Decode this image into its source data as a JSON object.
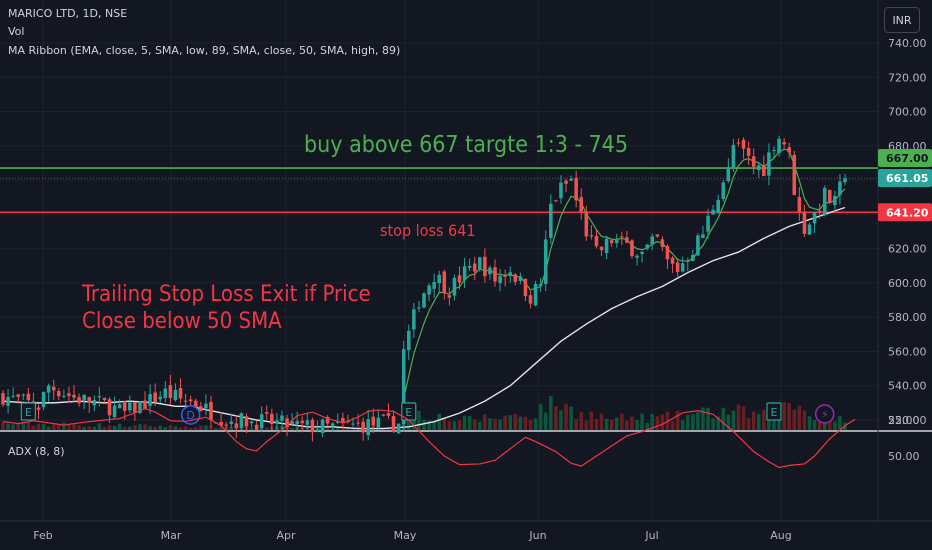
{
  "header": {
    "symbol_line": "MARICO LTD, 1D, NSE",
    "vol_label": "Vol",
    "ma_label": "MA Ribbon (EMA, close, 5, SMA, low, 89, SMA, close, 50, SMA, high, 89)",
    "currency_button": "INR"
  },
  "annotations": {
    "buy_text": "buy above 667 targte 1:3 - 745",
    "stop_text": "stop loss 641",
    "trailing_line1": "Trailing Stop Loss Exit if Price",
    "trailing_line2": "Close below 50 SMA"
  },
  "markers": {
    "earnings": "E",
    "dividend": "D",
    "flash": "⚡"
  },
  "colors": {
    "background": "#131722",
    "up": "#26a69a",
    "down": "#ef5350",
    "buy_line": "#4caf50",
    "stop_line": "#f23645",
    "sma50": "#e0e3eb",
    "ema5": "#4caf50",
    "adx": "#f23645",
    "buy_text": "#4caf50",
    "stop_text": "#f23645",
    "earnings_marker": "#26a69a",
    "dividend_marker": "#2962ff",
    "flash_marker": "#9c27b0"
  },
  "chart_data": [
    {
      "type": "candlestick",
      "title": "MARICO LTD, 1D, NSE",
      "y_ticks": [
        "740.00",
        "720.00",
        "700.00",
        "680.00",
        "660.00",
        "640.00",
        "620.00",
        "600.00",
        "580.00",
        "560.00",
        "540.00",
        "520.00"
      ],
      "x_ticks": [
        "Feb",
        "Mar",
        "Apr",
        "May",
        "Jun",
        "Jul",
        "Aug"
      ],
      "ylim": [
        516,
        746
      ],
      "price_labels": [
        {
          "value": 667.0,
          "text": "667.00",
          "color": "#4caf50",
          "text_color": "#131722"
        },
        {
          "value": 661.05,
          "text": "661.05",
          "color": "#26a69a",
          "text_color": "#ffffff"
        },
        {
          "value": 641.2,
          "text": "641.20",
          "color": "#f23645",
          "text_color": "#ffffff"
        }
      ],
      "horizontal_lines": [
        {
          "value": 667,
          "color": "#4caf50"
        },
        {
          "value": 641.2,
          "color": "#f23645"
        }
      ],
      "price_path": [
        [
          0,
          534
        ],
        [
          7,
          528
        ],
        [
          9,
          540
        ],
        [
          14,
          533
        ],
        [
          20,
          529
        ],
        [
          24,
          524
        ],
        [
          28,
          530
        ],
        [
          32,
          536
        ],
        [
          35,
          532
        ],
        [
          37,
          531
        ],
        [
          44,
          520
        ],
        [
          52,
          519
        ],
        [
          59,
          516
        ],
        [
          65,
          516
        ],
        [
          70,
          517
        ],
        [
          75,
          518
        ],
        [
          78,
          518
        ],
        [
          79,
          560
        ],
        [
          82,
          590
        ],
        [
          85,
          605
        ],
        [
          88,
          596
        ],
        [
          91,
          606
        ],
        [
          94,
          612
        ],
        [
          97,
          602
        ],
        [
          100,
          608
        ],
        [
          102,
          600
        ],
        [
          104,
          592
        ],
        [
          106,
          600
        ],
        [
          108,
          645
        ],
        [
          110,
          655
        ],
        [
          112,
          660
        ],
        [
          113,
          648
        ],
        [
          115,
          630
        ],
        [
          117,
          617
        ],
        [
          120,
          625
        ],
        [
          123,
          622
        ],
        [
          126,
          617
        ],
        [
          129,
          625
        ],
        [
          131,
          612
        ],
        [
          133,
          608
        ],
        [
          136,
          620
        ],
        [
          138,
          629
        ],
        [
          140,
          645
        ],
        [
          142,
          660
        ],
        [
          143,
          665
        ],
        [
          144,
          680
        ],
        [
          146,
          676
        ],
        [
          148,
          668
        ],
        [
          150,
          667
        ],
        [
          152,
          682
        ],
        [
          153,
          685
        ],
        [
          154,
          682
        ],
        [
          155,
          673
        ],
        [
          156,
          655
        ],
        [
          157,
          640
        ],
        [
          158,
          632
        ],
        [
          160,
          640
        ],
        [
          162,
          651
        ],
        [
          164,
          646
        ],
        [
          165,
          655
        ],
        [
          166,
          661
        ]
      ],
      "sma50_path": [
        [
          0,
          531
        ],
        [
          5,
          530
        ],
        [
          10,
          530
        ],
        [
          15,
          531
        ],
        [
          20,
          530
        ],
        [
          25,
          531
        ],
        [
          30,
          530
        ],
        [
          34,
          528
        ],
        [
          37,
          528
        ],
        [
          40,
          526
        ],
        [
          45,
          523
        ],
        [
          50,
          520
        ],
        [
          55,
          518
        ],
        [
          60,
          516
        ],
        [
          65,
          516
        ],
        [
          70,
          515
        ],
        [
          75,
          515
        ],
        [
          80,
          516
        ],
        [
          85,
          519
        ],
        [
          90,
          524
        ],
        [
          95,
          531
        ],
        [
          100,
          540
        ],
        [
          105,
          553
        ],
        [
          110,
          566
        ],
        [
          115,
          576
        ],
        [
          120,
          585
        ],
        [
          125,
          592
        ],
        [
          130,
          598
        ],
        [
          135,
          606
        ],
        [
          140,
          613
        ],
        [
          145,
          618
        ],
        [
          150,
          626
        ],
        [
          155,
          633
        ],
        [
          160,
          638
        ],
        [
          166,
          644
        ]
      ],
      "earnings_days": [
        5,
        80,
        152
      ],
      "dividend_days": [
        37
      ],
      "flash_days": [
        162
      ],
      "volume_path": [
        [
          0,
          0.2
        ],
        [
          20,
          0.15
        ],
        [
          40,
          0.1
        ],
        [
          60,
          0.08
        ],
        [
          78,
          0.12
        ],
        [
          80,
          0.7
        ],
        [
          84,
          0.45
        ],
        [
          90,
          0.3
        ],
        [
          105,
          0.5
        ],
        [
          108,
          1.0
        ],
        [
          112,
          0.6
        ],
        [
          120,
          0.35
        ],
        [
          132,
          0.4
        ],
        [
          140,
          0.55
        ],
        [
          143,
          0.6
        ],
        [
          150,
          0.45
        ],
        [
          156,
          0.8
        ],
        [
          160,
          0.5
        ],
        [
          166,
          0.35
        ]
      ],
      "n_days": 167
    },
    {
      "type": "line",
      "title": "ADX (8, 8)",
      "y_ticks": [
        "50.00",
        "25.00"
      ],
      "ylim": [
        10,
        62
      ],
      "adx_path": [
        [
          0,
          26
        ],
        [
          3,
          27.5
        ],
        [
          6,
          25.5
        ],
        [
          9,
          27
        ],
        [
          12,
          28.5
        ],
        [
          16,
          26.5
        ],
        [
          20,
          25
        ],
        [
          23,
          24
        ],
        [
          26,
          20
        ],
        [
          28,
          17
        ],
        [
          30,
          19.5
        ],
        [
          33,
          25.5
        ],
        [
          36,
          26
        ],
        [
          40,
          23
        ],
        [
          43,
          29
        ],
        [
          46,
          40
        ],
        [
          48,
          45
        ],
        [
          50,
          46.5
        ],
        [
          52,
          40
        ],
        [
          55,
          32
        ],
        [
          58,
          22
        ],
        [
          61,
          19.5
        ],
        [
          64,
          24
        ],
        [
          67,
          27
        ],
        [
          70,
          23
        ],
        [
          72,
          19
        ],
        [
          74,
          18
        ],
        [
          77,
          19
        ],
        [
          80,
          25
        ],
        [
          84,
          40
        ],
        [
          87,
          50
        ],
        [
          90,
          56
        ],
        [
          94,
          55.5
        ],
        [
          97,
          53
        ],
        [
          100,
          45
        ],
        [
          103,
          37
        ],
        [
          105,
          40
        ],
        [
          109,
          47
        ],
        [
          112,
          55
        ],
        [
          114,
          57
        ],
        [
          117,
          50
        ],
        [
          120,
          43
        ],
        [
          123,
          36
        ],
        [
          126,
          33
        ],
        [
          130,
          28
        ],
        [
          134,
          20
        ],
        [
          137,
          18.5
        ],
        [
          140,
          21
        ],
        [
          144,
          33
        ],
        [
          148,
          47
        ],
        [
          151,
          54
        ],
        [
          153,
          58
        ],
        [
          155,
          56.5
        ],
        [
          158,
          55.5
        ],
        [
          160,
          50
        ],
        [
          163,
          38
        ],
        [
          166,
          29
        ],
        [
          168,
          24.5
        ]
      ]
    }
  ]
}
